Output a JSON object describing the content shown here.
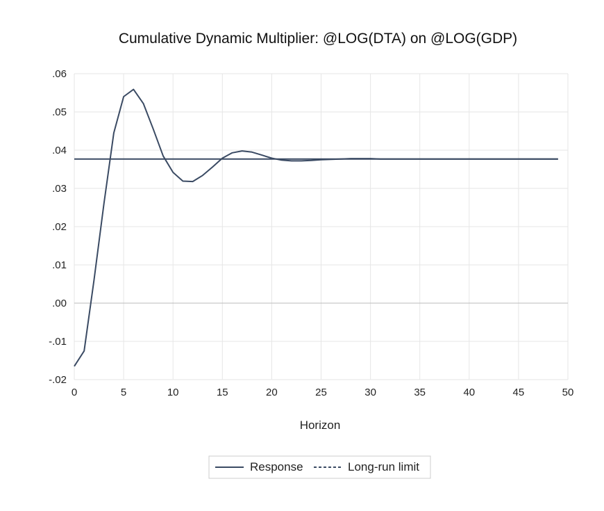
{
  "chart_data": {
    "type": "line",
    "title": "Cumulative Dynamic Multiplier: @LOG(DTA) on @LOG(GDP)",
    "xlabel": "Horizon",
    "ylabel": "",
    "xlim": [
      0,
      50
    ],
    "ylim": [
      -0.02,
      0.06
    ],
    "x_ticks": [
      0,
      5,
      10,
      15,
      20,
      25,
      30,
      35,
      40,
      45,
      50
    ],
    "x_tick_labels": [
      "0",
      "5",
      "10",
      "15",
      "20",
      "25",
      "30",
      "35",
      "40",
      "45",
      "50"
    ],
    "y_ticks": [
      -0.02,
      -0.01,
      0.0,
      0.01,
      0.02,
      0.03,
      0.04,
      0.05,
      0.06
    ],
    "y_tick_labels": [
      "-.02",
      "-.01",
      ".00",
      ".01",
      ".02",
      ".03",
      ".04",
      ".05",
      ".06"
    ],
    "grid": true,
    "legend_position": "bottom",
    "colors": {
      "line": "#3a4a63",
      "grid": "#e6e6e6",
      "zero": "#bbbbbb",
      "legend_border": "#cccccc"
    },
    "series": [
      {
        "name": "Response",
        "style": "solid",
        "x": [
          0,
          1,
          2,
          3,
          4,
          5,
          6,
          7,
          8,
          9,
          10,
          11,
          12,
          13,
          14,
          15,
          16,
          17,
          18,
          19,
          20,
          21,
          22,
          23,
          24,
          25,
          26,
          27,
          28,
          29,
          30,
          31,
          32,
          33,
          34,
          35,
          36,
          37,
          38,
          39,
          40,
          41,
          42,
          43,
          44,
          45,
          46,
          47,
          48,
          49
        ],
        "values": [
          -0.0165,
          -0.0125,
          0.006,
          0.026,
          0.0445,
          0.054,
          0.0559,
          0.0522,
          0.0455,
          0.0385,
          0.0342,
          0.0319,
          0.0318,
          0.0334,
          0.0356,
          0.0379,
          0.0393,
          0.0398,
          0.0395,
          0.0387,
          0.0379,
          0.0374,
          0.0372,
          0.0372,
          0.0373,
          0.0375,
          0.0376,
          0.0377,
          0.0378,
          0.0378,
          0.0378,
          0.0377,
          0.0377,
          0.0377,
          0.0377,
          0.0377,
          0.0377,
          0.0377,
          0.0377,
          0.0377,
          0.0377,
          0.0377,
          0.0377,
          0.0377,
          0.0377,
          0.0377,
          0.0377,
          0.0377,
          0.0377,
          0.0377
        ]
      },
      {
        "name": "Long-run limit",
        "style": "dashed",
        "x": [
          0,
          49
        ],
        "values": [
          0.0377,
          0.0377
        ]
      }
    ]
  }
}
